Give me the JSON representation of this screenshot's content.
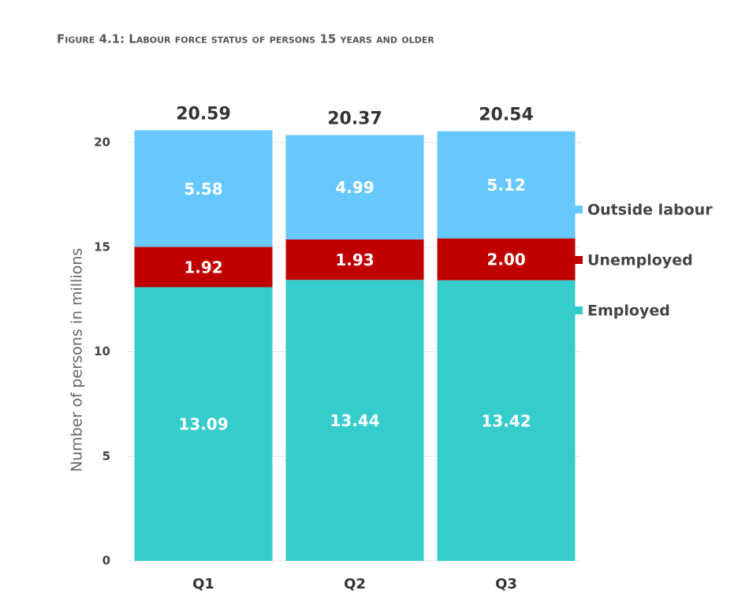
{
  "chart_data": {
    "type": "stacked_bar",
    "title": "Figure 4.1: Labour force status of persons 15 years and older",
    "y_label": "Number of persons in millions",
    "categories": [
      "Q1",
      "Q2",
      "Q3"
    ],
    "series": [
      {
        "name": "Employed",
        "color": "#36cccc",
        "values": [
          13.09,
          13.44,
          13.42
        ]
      },
      {
        "name": "Unemployed",
        "color": "#c00000",
        "values": [
          1.92,
          1.93,
          2.0
        ],
        "value_labels": [
          "1.92",
          "1.93",
          "2.00"
        ]
      },
      {
        "name": "Outside labour",
        "color": "#66c8ff",
        "values": [
          5.58,
          4.99,
          5.12
        ]
      }
    ],
    "totals": [
      20.59,
      20.37,
      20.54
    ],
    "ylim": [
      0,
      21
    ],
    "yticks": [
      0,
      5,
      10,
      15,
      20
    ],
    "grid": true,
    "legend": "right"
  }
}
